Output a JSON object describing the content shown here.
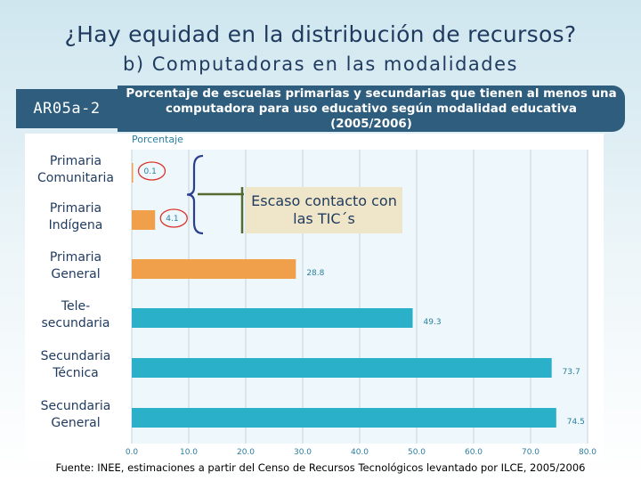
{
  "header": {
    "title": "¿Hay equidad en la distribución de recursos?",
    "subtitle": "b) Computadoras en las modalidades"
  },
  "indicator": {
    "code": "AR05a-2",
    "description": "Porcentaje de escuelas primarias y secundarias que tienen al menos una computadora para uso educativo según modalidad educativa (2005/2006)"
  },
  "callout": {
    "text": "Escaso contacto con las TIC´s"
  },
  "footnote": "Fuente: INEE, estimaciones a partir del Censo de Recursos Tecnológicos levantado por ILCE, 2005/2006",
  "colors": {
    "highlight_bar": "#f0a04b",
    "normal_bar": "#2ab0c8",
    "brace": "#2a3f8f",
    "header_box": "#2e5d7e",
    "callout_bg": "#efe6c9"
  },
  "chart_data": {
    "type": "bar",
    "orientation": "horizontal",
    "ylabel": "Porcentaje",
    "categories": [
      "Primaria Comunitaria",
      "Primaria Indígena",
      "Primaria General",
      "Tele-secundaria",
      "Secundaria Técnica",
      "Secundaria General"
    ],
    "category_display": [
      [
        "Primaria",
        "Comunitaria"
      ],
      [
        "Primaria",
        "Indígena"
      ],
      [
        "Primaria",
        "General"
      ],
      [
        "Tele-",
        "secundaria"
      ],
      [
        "Secundaria",
        "Técnica"
      ],
      [
        "Secundaria",
        "General"
      ]
    ],
    "values": [
      0.1,
      4.1,
      28.8,
      49.3,
      73.7,
      74.5
    ],
    "value_labels": [
      "0.1",
      "4.1",
      "28.8",
      "49.3",
      "73.7",
      "74.5"
    ],
    "highlighted": [
      true,
      true,
      true,
      false,
      false,
      false
    ],
    "circled": [
      true,
      true,
      false,
      false,
      false,
      false
    ],
    "xlim": [
      0,
      80
    ],
    "xticks": [
      "0.0",
      "10.0",
      "20.0",
      "30.0",
      "40.0",
      "50.0",
      "60.0",
      "70.0",
      "80.0"
    ],
    "grid": true
  }
}
